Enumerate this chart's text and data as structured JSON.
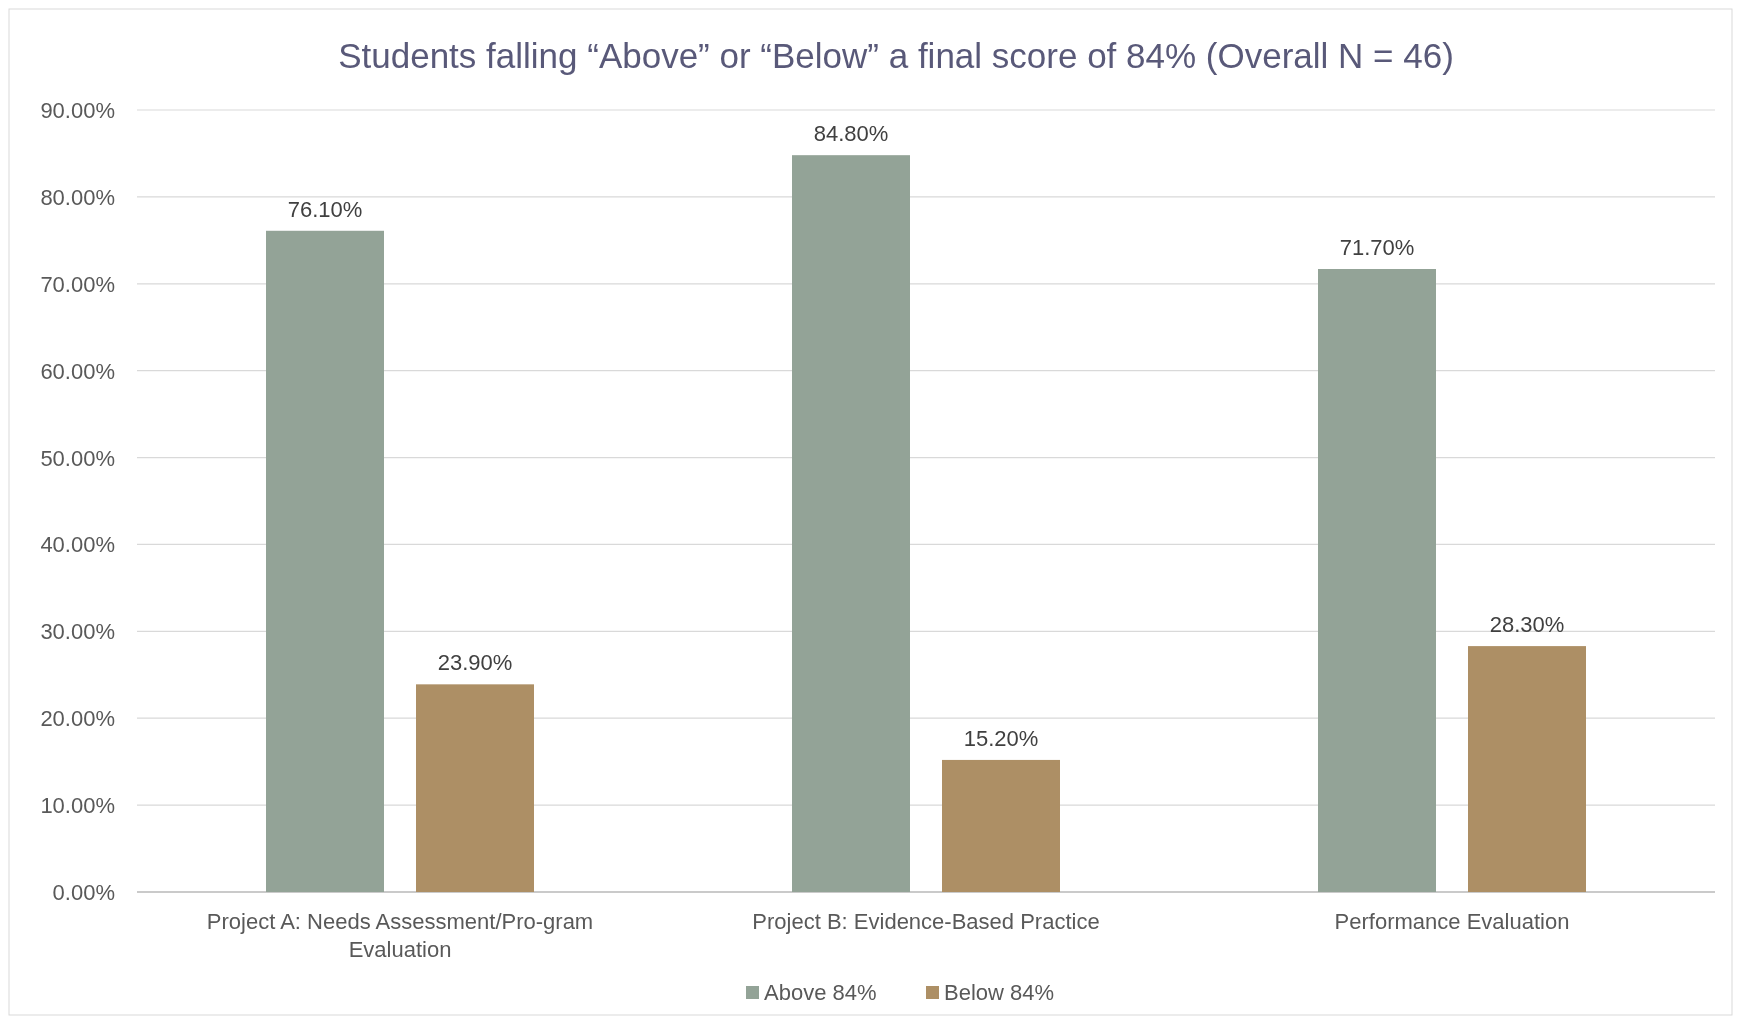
{
  "chart_data": {
    "type": "bar",
    "title": "Students falling “Above” or “Below” a final score of 84% (Overall N = 46)",
    "categories": [
      "Project A: Needs Assessment/Pro-gram Evaluation",
      "Project B:  Evidence-Based Practice",
      "Performance Evaluation"
    ],
    "series": [
      {
        "name": "Above 84%",
        "color": "#93a397",
        "values": [
          76.1,
          84.8,
          71.7
        ],
        "value_labels": [
          "76.10%",
          "84.80%",
          "71.70%"
        ]
      },
      {
        "name": "Below 84%",
        "color": "#ad8f65",
        "values": [
          23.9,
          15.2,
          28.3
        ],
        "value_labels": [
          "23.90%",
          "15.20%",
          "28.30%"
        ]
      }
    ],
    "ylim": [
      0,
      90
    ],
    "yticks": [
      {
        "value": 0,
        "label": "0.00%"
      },
      {
        "value": 10,
        "label": "10.00%"
      },
      {
        "value": 20,
        "label": "20.00%"
      },
      {
        "value": 30,
        "label": "30.00%"
      },
      {
        "value": 40,
        "label": "40.00%"
      },
      {
        "value": 50,
        "label": "50.00%"
      },
      {
        "value": 60,
        "label": "60.00%"
      },
      {
        "value": 70,
        "label": "70.00%"
      },
      {
        "value": 80,
        "label": "80.00%"
      },
      {
        "value": 90,
        "label": "90.00%"
      }
    ],
    "grid": "y",
    "legend": "bottom"
  }
}
